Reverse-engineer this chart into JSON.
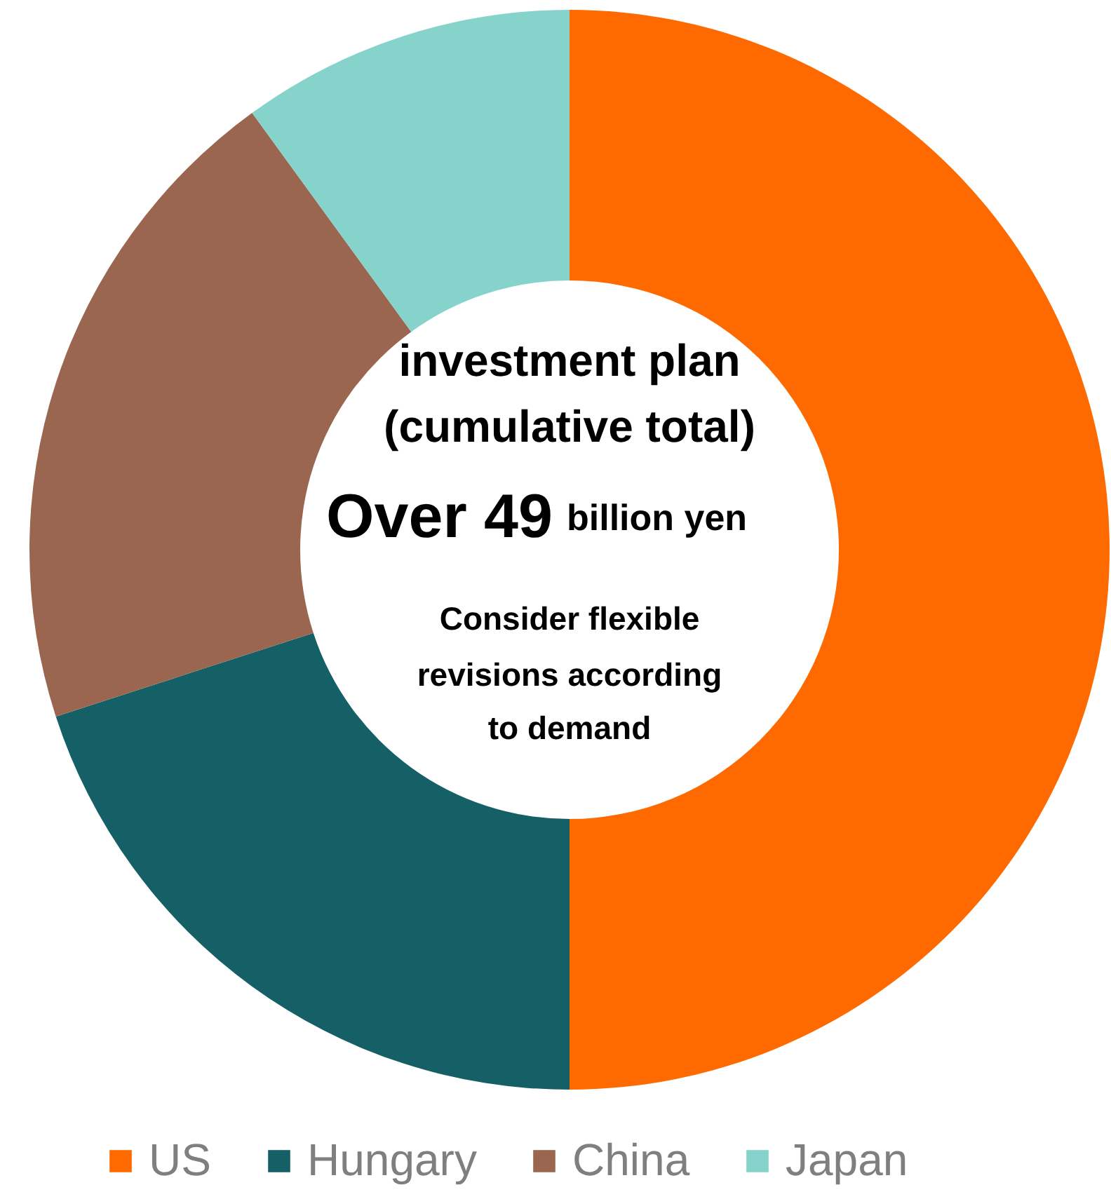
{
  "chart_data": {
    "type": "donut",
    "categories": [
      "US",
      "Hungary",
      "China",
      "Japan"
    ],
    "values": [
      50,
      20,
      20,
      10
    ],
    "colors": [
      "#ff6a00",
      "#156066",
      "#9b6650",
      "#86d3cc"
    ],
    "legend": "bottom",
    "annotations": [
      "investment plan",
      "(cumulative total)",
      "Over 49",
      "billion yen",
      "Consider flexible",
      "revisions according",
      "to demand"
    ]
  }
}
